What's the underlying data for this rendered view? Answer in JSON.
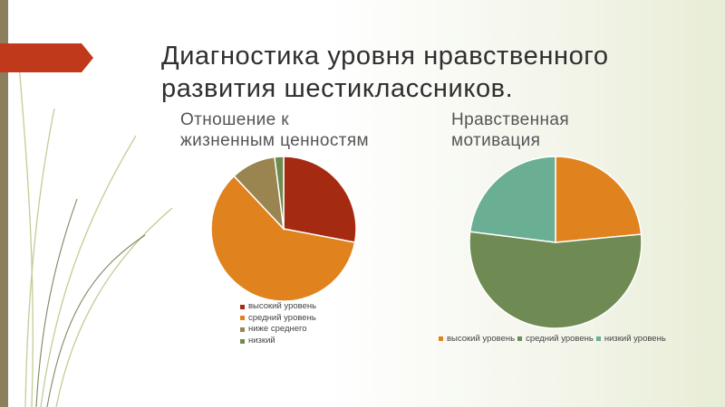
{
  "slide": {
    "title_line1": "Диагностика уровня нравственного",
    "title_line2": "развития шестиклассников.",
    "accent_color": "#c0391b"
  },
  "chart_data": [
    {
      "type": "pie",
      "title": "Отношение к жизненным ценностям",
      "title_line1": "Отношение к",
      "title_line2": "жизненным ценностям",
      "legend_placement": "bottom",
      "categories": [
        "высокий уровень",
        "средний уровень",
        "ниже среднего",
        "низкий"
      ],
      "values": [
        28,
        60,
        10,
        2
      ],
      "colors": [
        "#a52a12",
        "#e0821e",
        "#9a8450",
        "#6e8a4e"
      ]
    },
    {
      "type": "pie",
      "title": "Нравственная мотивация",
      "title_line1": "Нравственная",
      "title_line2": "мотивация",
      "legend_placement": "bottom",
      "categories": [
        "высокий уровень",
        "средний уровень",
        "низкий уровень"
      ],
      "values": [
        23.5,
        53.5,
        23
      ],
      "colors": [
        "#e0821e",
        "#6f8a52",
        "#6aae93"
      ]
    }
  ]
}
